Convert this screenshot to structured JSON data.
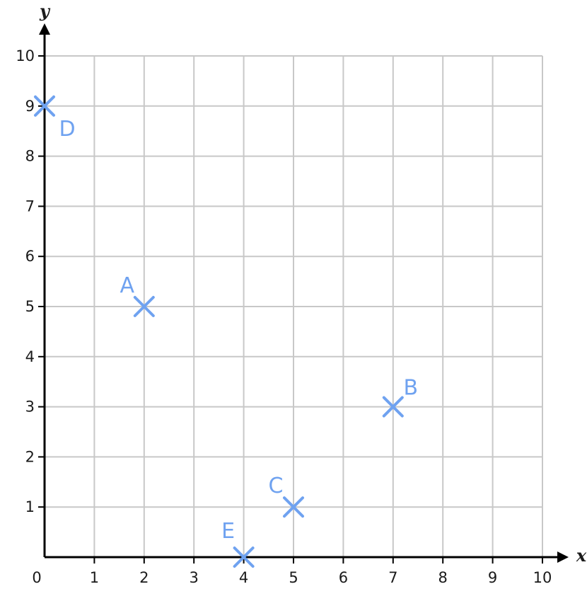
{
  "chart_data": {
    "type": "scatter",
    "xlabel": "x",
    "ylabel": "y",
    "xlim": [
      0,
      10
    ],
    "ylim": [
      0,
      10
    ],
    "grid": true,
    "x_ticks": [
      "1",
      "2",
      "3",
      "4",
      "5",
      "6",
      "7",
      "8",
      "9",
      "10"
    ],
    "y_ticks": [
      "1",
      "2",
      "3",
      "4",
      "5",
      "6",
      "7",
      "8",
      "9",
      "10"
    ],
    "origin_label": "0",
    "points": [
      {
        "label": "A",
        "x": 2,
        "y": 5
      },
      {
        "label": "B",
        "x": 7,
        "y": 3
      },
      {
        "label": "C",
        "x": 5,
        "y": 1
      },
      {
        "label": "D",
        "x": 0,
        "y": 9
      },
      {
        "label": "E",
        "x": 4,
        "y": 0
      }
    ],
    "marker": "cross",
    "marker_color": "#6fa2f0"
  }
}
